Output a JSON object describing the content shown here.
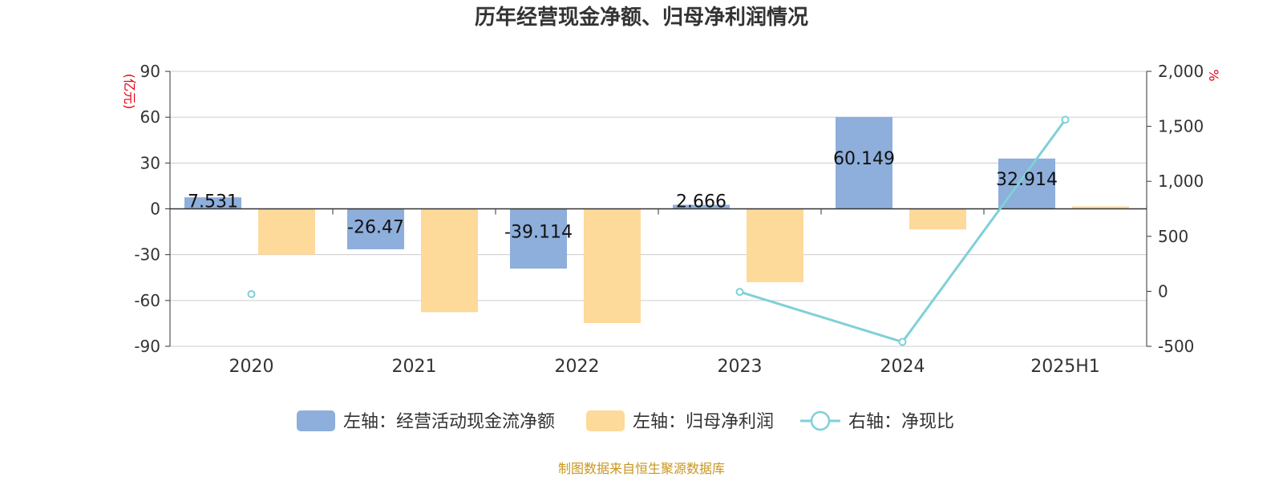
{
  "chart_data": {
    "type": "bar",
    "title": "历年经营现金净额、归母净利润情况",
    "categories": [
      "2020",
      "2021",
      "2022",
      "2023",
      "2024",
      "2025H1"
    ],
    "left_axis": {
      "unit": "(亿元)",
      "ylim": [
        -90,
        90
      ],
      "ticks": [
        90,
        60,
        30,
        0,
        -30,
        -60,
        -90
      ]
    },
    "right_axis": {
      "unit": "%",
      "ylim": [
        -500,
        2000
      ],
      "ticks": [
        "2,000",
        "1,500",
        "1,000",
        "500",
        "0",
        "-500"
      ]
    },
    "grid": true,
    "legend_position": "bottom",
    "series": [
      {
        "name": "左轴：经营活动现金流净额",
        "type": "bar",
        "axis": "left",
        "color": "#8eaedb",
        "values": [
          7.531,
          -26.47,
          -39.114,
          2.666,
          60.149,
          32.914
        ],
        "labels": [
          "7.531",
          "-26.47",
          "-39.114",
          "2.666",
          "60.149",
          "32.914"
        ]
      },
      {
        "name": "左轴：归母净利润",
        "type": "bar",
        "axis": "left",
        "color": "#fdd99a",
        "values": [
          -30.0,
          -67.6,
          -74.8,
          -48.0,
          -13.5,
          1.6
        ]
      },
      {
        "name": "右轴：净现比",
        "type": "line",
        "axis": "right",
        "color": "#7fd0d8",
        "values": [
          -25,
          null,
          null,
          -5,
          -460,
          1560
        ]
      }
    ]
  },
  "source_note": "制图数据来自恒生聚源数据库"
}
